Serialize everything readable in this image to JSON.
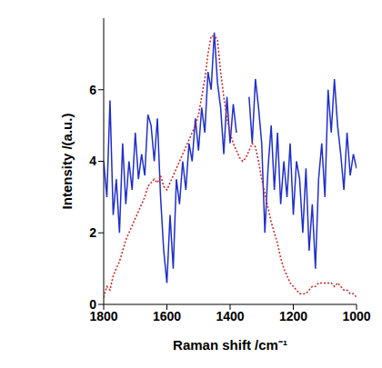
{
  "chart_data": {
    "type": "line",
    "x_label": "Raman shift /cm⁻¹",
    "y_label": "Intensity /(a.u.)",
    "x": [
      1800,
      1790,
      1780,
      1770,
      1760,
      1750,
      1740,
      1730,
      1720,
      1710,
      1700,
      1690,
      1680,
      1670,
      1660,
      1650,
      1640,
      1630,
      1620,
      1610,
      1600,
      1590,
      1580,
      1570,
      1560,
      1550,
      1540,
      1530,
      1520,
      1510,
      1500,
      1490,
      1480,
      1470,
      1460,
      1450,
      1440,
      1430,
      1420,
      1410,
      1400,
      1390,
      1380,
      1370,
      1360,
      1350,
      1340,
      1330,
      1320,
      1310,
      1300,
      1290,
      1280,
      1270,
      1260,
      1250,
      1240,
      1230,
      1220,
      1210,
      1200,
      1190,
      1180,
      1170,
      1160,
      1150,
      1140,
      1130,
      1120,
      1110,
      1100,
      1090,
      1080,
      1070,
      1060,
      1050,
      1040,
      1030,
      1020,
      1010,
      1000
    ],
    "series": [
      {
        "color": "#1f2fcc",
        "line_style": "solid",
        "values": [
          4.0,
          3.0,
          5.7,
          2.5,
          3.5,
          2.0,
          4.5,
          2.8,
          4.0,
          3.2,
          4.8,
          3.5,
          4.2,
          3.6,
          5.3,
          5.0,
          4.0,
          5.2,
          3.0,
          1.5,
          0.6,
          2.5,
          1.0,
          3.5,
          2.8,
          4.0,
          3.2,
          4.5,
          4.0,
          5.2,
          4.3,
          5.5,
          4.8,
          6.5,
          6.0,
          7.6,
          6.2,
          5.5,
          4.2,
          5.8,
          4.5,
          5.6,
          4.8,
          null,
          null,
          null,
          5.8,
          4.5,
          6.3,
          5.5,
          4.5,
          2.0,
          3.8,
          5.0,
          3.2,
          4.8,
          2.8,
          4.0,
          3.0,
          4.5,
          2.5,
          4.0,
          3.5,
          2.0,
          3.8,
          1.5,
          2.8,
          1.0,
          3.5,
          4.5,
          3.0,
          6.0,
          4.8,
          6.3,
          5.0,
          4.2,
          3.2,
          4.8,
          3.6,
          4.2,
          3.8
        ]
      },
      {
        "color": "#d02020",
        "line_style": "dotted",
        "values": [
          0.2,
          0.5,
          0.4,
          0.8,
          1.0,
          1.2,
          1.5,
          1.8,
          2.0,
          2.2,
          2.4,
          2.6,
          2.8,
          3.0,
          3.3,
          3.4,
          3.5,
          3.4,
          3.6,
          3.3,
          3.2,
          3.4,
          3.6,
          3.8,
          4.0,
          4.2,
          4.4,
          4.6,
          4.8,
          5.0,
          5.3,
          5.8,
          6.3,
          7.0,
          7.5,
          7.5,
          7.4,
          6.5,
          5.8,
          5.2,
          4.8,
          4.5,
          4.3,
          4.1,
          4.0,
          4.1,
          4.3,
          4.5,
          4.4,
          4.0,
          3.5,
          3.1,
          2.7,
          2.3,
          2.0,
          1.7,
          1.3,
          1.0,
          0.8,
          0.6,
          0.5,
          0.4,
          0.3,
          0.3,
          0.3,
          0.4,
          0.5,
          0.5,
          0.6,
          0.6,
          0.6,
          0.6,
          0.6,
          0.5,
          0.6,
          0.5,
          0.4,
          0.4,
          0.3,
          0.3,
          0.2
        ]
      }
    ],
    "xlim": [
      1000,
      1800
    ],
    "xticks": [
      1000,
      1200,
      1400,
      1600,
      1800
    ],
    "ylim": [
      0,
      8
    ],
    "yticks": [
      0,
      2,
      4,
      6
    ],
    "grid": false
  }
}
